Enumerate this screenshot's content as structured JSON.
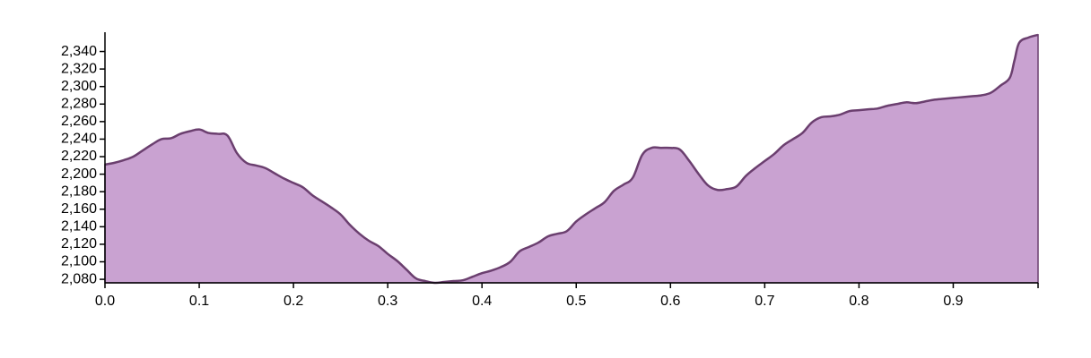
{
  "chart_data": {
    "type": "area",
    "title": "",
    "xlabel": "",
    "ylabel": "",
    "xlim": [
      0,
      0.99
    ],
    "ylim": [
      2076,
      2362
    ],
    "grid": false,
    "legend": "none",
    "colors": {
      "fill": "#c9a2d1",
      "stroke": "#6b3f6f"
    },
    "x_ticks": [
      0.0,
      0.1,
      0.2,
      0.3,
      0.4,
      0.5,
      0.6,
      0.7,
      0.8,
      0.9
    ],
    "x_tick_labels": [
      "0.0",
      "0.1",
      "0.2",
      "0.3",
      "0.4",
      "0.5",
      "0.6",
      "0.7",
      "0.8",
      "0.9"
    ],
    "y_ticks": [
      2080,
      2100,
      2120,
      2140,
      2160,
      2180,
      2200,
      2220,
      2240,
      2260,
      2280,
      2300,
      2320,
      2340
    ],
    "y_tick_labels": [
      "2,080",
      "2,100",
      "2,120",
      "2,140",
      "2,160",
      "2,180",
      "2,200",
      "2,220",
      "2,240",
      "2,260",
      "2,280",
      "2,300",
      "2,320",
      "2,340"
    ],
    "series": [
      {
        "x": [
          0.0,
          0.01,
          0.02,
          0.03,
          0.04,
          0.05,
          0.06,
          0.07,
          0.08,
          0.09,
          0.1,
          0.11,
          0.12,
          0.13,
          0.14,
          0.15,
          0.16,
          0.17,
          0.18,
          0.19,
          0.2,
          0.21,
          0.22,
          0.23,
          0.24,
          0.25,
          0.26,
          0.27,
          0.28,
          0.29,
          0.3,
          0.31,
          0.32,
          0.33,
          0.34,
          0.35,
          0.36,
          0.37,
          0.38,
          0.39,
          0.4,
          0.41,
          0.42,
          0.43,
          0.44,
          0.45,
          0.46,
          0.47,
          0.48,
          0.49,
          0.5,
          0.51,
          0.52,
          0.53,
          0.54,
          0.55,
          0.56,
          0.57,
          0.58,
          0.59,
          0.6,
          0.61,
          0.62,
          0.63,
          0.64,
          0.65,
          0.66,
          0.67,
          0.68,
          0.69,
          0.7,
          0.71,
          0.72,
          0.73,
          0.74,
          0.75,
          0.76,
          0.77,
          0.78,
          0.79,
          0.8,
          0.81,
          0.82,
          0.83,
          0.84,
          0.85,
          0.86,
          0.87,
          0.88,
          0.89,
          0.9,
          0.91,
          0.92,
          0.93,
          0.94,
          0.95,
          0.96,
          0.965,
          0.97,
          0.98,
          0.99
        ],
        "values": [
          2211,
          2213,
          2216,
          2220,
          2227,
          2234,
          2240,
          2241,
          2246,
          2249,
          2251,
          2247,
          2246,
          2244,
          2224,
          2213,
          2210,
          2207,
          2201,
          2195,
          2190,
          2185,
          2176,
          2169,
          2162,
          2154,
          2142,
          2132,
          2124,
          2118,
          2109,
          2101,
          2091,
          2081,
          2078,
          2076,
          2077,
          2078,
          2079,
          2083,
          2087,
          2090,
          2094,
          2100,
          2112,
          2117,
          2122,
          2129,
          2132,
          2135,
          2146,
          2154,
          2161,
          2168,
          2181,
          2188,
          2196,
          2222,
          2230,
          2230,
          2230,
          2228,
          2215,
          2200,
          2187,
          2182,
          2183,
          2186,
          2198,
          2207,
          2215,
          2223,
          2233,
          2240,
          2247,
          2259,
          2265,
          2266,
          2268,
          2272,
          2273,
          2274,
          2275,
          2278,
          2280,
          2282,
          2281,
          2283,
          2285,
          2286,
          2287,
          2288,
          2289,
          2290,
          2293,
          2301,
          2310,
          2330,
          2350,
          2356,
          2359
        ]
      }
    ]
  }
}
